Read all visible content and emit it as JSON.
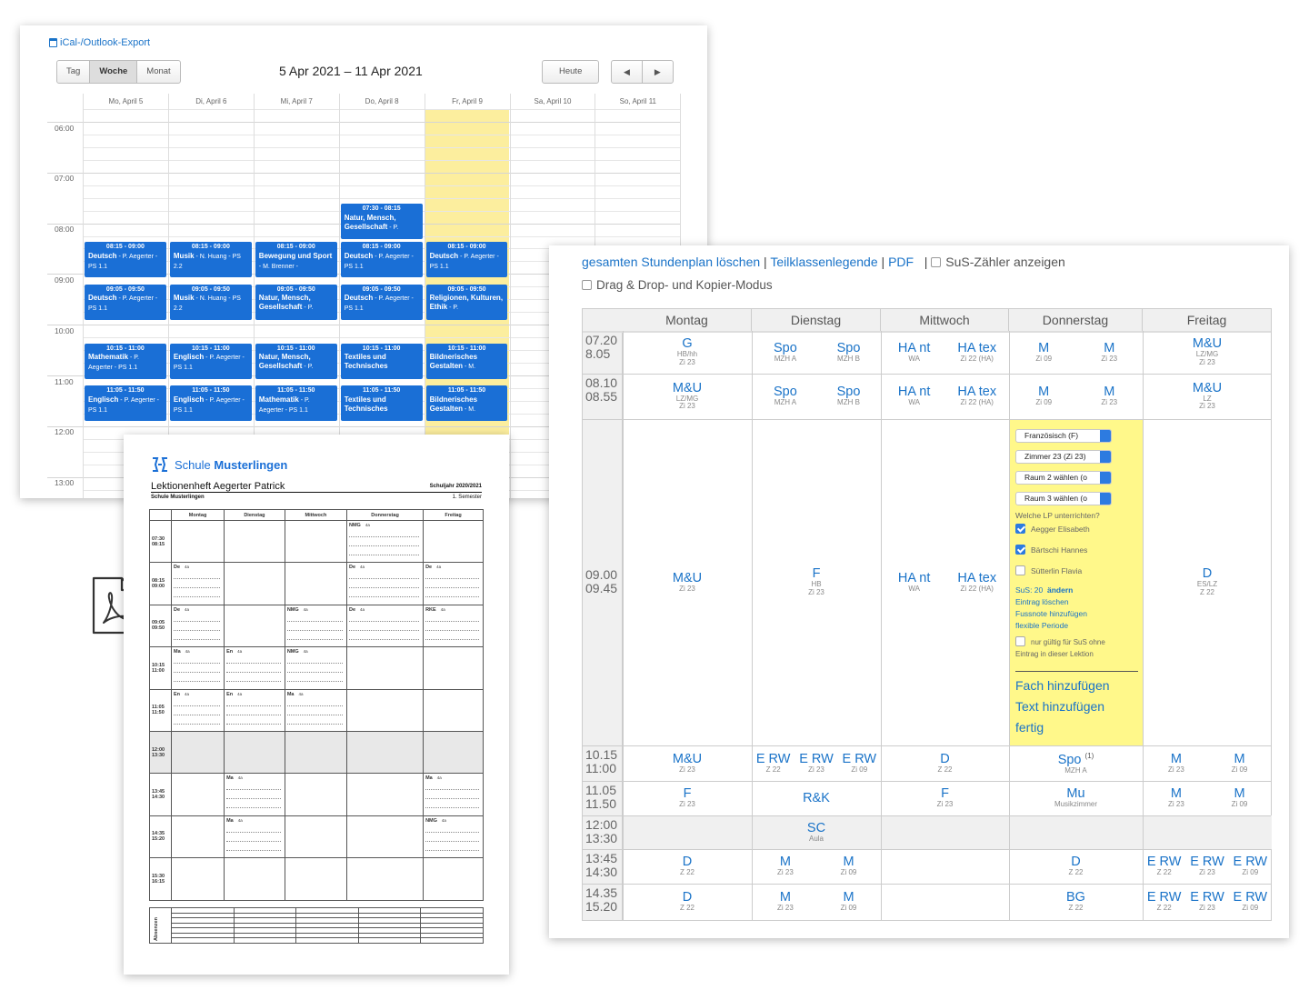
{
  "calendar": {
    "export_link": "iCal-/Outlook-Export",
    "views": [
      "Tag",
      "Woche",
      "Monat"
    ],
    "active_view": "Woche",
    "range_title": "5 Apr 2021 – 11 Apr 2021",
    "today_button": "Heute",
    "prev_icon": "◀",
    "next_icon": "▶",
    "days": [
      "Mo, April 5",
      "Di, April 6",
      "Mi, April 7",
      "Do, April 8",
      "Fr, April 9",
      "Sa, April 10",
      "So, April 11"
    ],
    "times": [
      "06:00",
      "07:00",
      "08:00",
      "09:00",
      "10:00",
      "11:00",
      "12:00",
      "13:00"
    ],
    "events": [
      {
        "day": 3,
        "start": "07:30",
        "time": "07:30 - 08:15",
        "subject": "Natur, Mensch, Gesellschaft",
        "detail": " - P."
      },
      {
        "day": 0,
        "start": "08:15",
        "time": "08:15 - 09:00",
        "subject": "Deutsch",
        "detail": " - P. Aegerter - PS 1.1"
      },
      {
        "day": 1,
        "start": "08:15",
        "time": "08:15 - 09:00",
        "subject": "Musik",
        "detail": " - N. Huang - PS 2.2"
      },
      {
        "day": 2,
        "start": "08:15",
        "time": "08:15 - 09:00",
        "subject": "Bewegung und Sport",
        "detail": " - M. Brenner -"
      },
      {
        "day": 3,
        "start": "08:15",
        "time": "08:15 - 09:00",
        "subject": "Deutsch",
        "detail": " - P. Aegerter - PS 1.1"
      },
      {
        "day": 4,
        "start": "08:15",
        "time": "08:15 - 09:00",
        "subject": "Deutsch",
        "detail": " - P. Aegerter - PS 1.1"
      },
      {
        "day": 0,
        "start": "09:05",
        "time": "09:05 - 09:50",
        "subject": "Deutsch",
        "detail": " - P. Aegerter - PS 1.1"
      },
      {
        "day": 1,
        "start": "09:05",
        "time": "09:05 - 09:50",
        "subject": "Musik",
        "detail": " - N. Huang - PS 2.2"
      },
      {
        "day": 2,
        "start": "09:05",
        "time": "09:05 - 09:50",
        "subject": "Natur, Mensch, Gesellschaft",
        "detail": " - P."
      },
      {
        "day": 3,
        "start": "09:05",
        "time": "09:05 - 09:50",
        "subject": "Deutsch",
        "detail": " - P. Aegerter - PS 1.1"
      },
      {
        "day": 4,
        "start": "09:05",
        "time": "09:05 - 09:50",
        "subject": "Religionen, Kulturen, Ethik",
        "detail": " - P."
      },
      {
        "day": 0,
        "start": "10:15",
        "time": "10:15 - 11:00",
        "subject": "Mathematik",
        "detail": " - P. Aegerter - PS 1.1"
      },
      {
        "day": 1,
        "start": "10:15",
        "time": "10:15 - 11:00",
        "subject": "Englisch",
        "detail": " - P. Aegerter - PS 1.1"
      },
      {
        "day": 2,
        "start": "10:15",
        "time": "10:15 - 11:00",
        "subject": "Natur, Mensch, Gesellschaft",
        "detail": " - P."
      },
      {
        "day": 3,
        "start": "10:15",
        "time": "10:15 - 11:00",
        "subject": "Textiles und Technisches",
        "detail": ""
      },
      {
        "day": 4,
        "start": "10:15",
        "time": "10:15 - 11:00",
        "subject": "Bildnerisches Gestalten",
        "detail": " - M."
      },
      {
        "day": 0,
        "start": "11:05",
        "time": "11:05 - 11:50",
        "subject": "Englisch",
        "detail": " - P. Aegerter - PS 1.1"
      },
      {
        "day": 1,
        "start": "11:05",
        "time": "11:05 - 11:50",
        "subject": "Englisch",
        "detail": " - P. Aegerter - PS 1.1"
      },
      {
        "day": 2,
        "start": "11:05",
        "time": "11:05 - 11:50",
        "subject": "Mathematik",
        "detail": " - P. Aegerter - PS 1.1"
      },
      {
        "day": 3,
        "start": "11:05",
        "time": "11:05 - 11:50",
        "subject": "Textiles und Technisches",
        "detail": ""
      },
      {
        "day": 4,
        "start": "11:05",
        "time": "11:05 - 11:50",
        "subject": "Bildnerisches Gestalten",
        "detail": " - M."
      }
    ]
  },
  "pdf_icon": "pdf-file-icon",
  "pdf": {
    "school_prefix": "Schule",
    "school_name": "Musterlingen",
    "title": "Lektionenheft Aegerter Patrick",
    "year": "Schuljahr 2020/2021",
    "school": "Schule Musterlingen",
    "semester": "1. Semester",
    "days": [
      "Montag",
      "Dienstag",
      "Mittwoch",
      "Donnerstag",
      "Freitag"
    ],
    "absences_label": "Absenzen",
    "rows": [
      {
        "time": [
          "07:30",
          "08:15"
        ],
        "cells": [
          "",
          "",
          "",
          "NMG|4a",
          ""
        ]
      },
      {
        "time": [
          "08:15",
          "09:00"
        ],
        "cells": [
          "De|4a",
          "",
          "",
          "De|4a",
          "De|4a"
        ]
      },
      {
        "time": [
          "09:05",
          "09:50"
        ],
        "cells": [
          "De|4a",
          "",
          "NMG|4a",
          "De|4a",
          "RKE|4a"
        ]
      },
      {
        "time": [
          "10:15",
          "11:00"
        ],
        "cells": [
          "Ma|4a",
          "En|4a",
          "NMG|4a",
          "",
          ""
        ]
      },
      {
        "time": [
          "11:05",
          "11:50"
        ],
        "cells": [
          "En|4a",
          "En|4a",
          "Ma|4a",
          "",
          ""
        ]
      },
      {
        "time": [
          "12:00",
          "13:30"
        ],
        "cells": [
          "",
          "",
          "",
          "",
          ""
        ],
        "gray": true
      },
      {
        "time": [
          "13:45",
          "14:30"
        ],
        "cells": [
          "",
          "Ma|4a",
          "",
          "",
          "Ma|4a"
        ]
      },
      {
        "time": [
          "14:35",
          "15:20"
        ],
        "cells": [
          "",
          "Ma|4a",
          "",
          "",
          "NMG|4a"
        ]
      },
      {
        "time": [
          "15:30",
          "16:15"
        ],
        "cells": [
          "",
          "",
          "",
          "",
          ""
        ]
      }
    ]
  },
  "schedule": {
    "links": {
      "delete": "gesamten Stundenplan löschen",
      "legend": "Teilklassenlegende",
      "pdf": "PDF",
      "counter": "SuS-Zähler anzeigen",
      "drag": "Drag & Drop- und Kopier-Modus"
    },
    "days": [
      "Montag",
      "Dienstag",
      "Mittwoch",
      "Donnerstag",
      "Freitag"
    ],
    "rows": [
      {
        "t1": "07.20",
        "t2": "8.05"
      },
      {
        "t1": "08.10",
        "t2": "08.55"
      },
      {
        "t1": "09.00",
        "t2": "09.45"
      },
      {
        "t1": "10.15",
        "t2": "11:00"
      },
      {
        "t1": "11.05",
        "t2": "11.50"
      },
      {
        "t1": "12:00",
        "t2": "13:30"
      },
      {
        "t1": "13:45",
        "t2": "14:30"
      },
      {
        "t1": "14.35",
        "t2": "15.20"
      }
    ],
    "entries": [
      {
        "r": 0,
        "d": 0,
        "p": 0,
        "n": 1,
        "f": "G",
        "x": [
          "HB/hh",
          "Zi 23"
        ]
      },
      {
        "r": 0,
        "d": 1,
        "p": 0,
        "n": 2,
        "f": "Spo",
        "x": [
          "MZH A"
        ]
      },
      {
        "r": 0,
        "d": 1,
        "p": 1,
        "n": 2,
        "f": "Spo",
        "x": [
          "MZH B"
        ]
      },
      {
        "r": 0,
        "d": 2,
        "p": 0,
        "n": 2,
        "f": "HA nt",
        "x": [
          "WA"
        ]
      },
      {
        "r": 0,
        "d": 2,
        "p": 1,
        "n": 2,
        "f": "HA tex",
        "x": [
          "Zi 22 (HA)"
        ]
      },
      {
        "r": 0,
        "d": 3,
        "p": 0,
        "n": 2,
        "f": "M",
        "x": [
          "Zi 09"
        ]
      },
      {
        "r": 0,
        "d": 3,
        "p": 1,
        "n": 2,
        "f": "M",
        "x": [
          "Zi 23"
        ]
      },
      {
        "r": 0,
        "d": 4,
        "p": 0,
        "n": 1,
        "f": "M&U",
        "x": [
          "LZ/MG",
          "Zi 23"
        ]
      },
      {
        "r": 1,
        "d": 0,
        "p": 0,
        "n": 1,
        "f": "M&U",
        "x": [
          "LZ/MG",
          "Zi 23"
        ]
      },
      {
        "r": 1,
        "d": 1,
        "p": 0,
        "n": 2,
        "f": "Spo",
        "x": [
          "MZH A"
        ]
      },
      {
        "r": 1,
        "d": 1,
        "p": 1,
        "n": 2,
        "f": "Spo",
        "x": [
          "MZH B"
        ]
      },
      {
        "r": 1,
        "d": 2,
        "p": 0,
        "n": 2,
        "f": "HA nt",
        "x": [
          "WA"
        ]
      },
      {
        "r": 1,
        "d": 2,
        "p": 1,
        "n": 2,
        "f": "HA tex",
        "x": [
          "Zi 22 (HA)"
        ]
      },
      {
        "r": 1,
        "d": 3,
        "p": 0,
        "n": 2,
        "f": "M",
        "x": [
          "Zi 09"
        ]
      },
      {
        "r": 1,
        "d": 3,
        "p": 1,
        "n": 2,
        "f": "M",
        "x": [
          "Zi 23"
        ]
      },
      {
        "r": 1,
        "d": 4,
        "p": 0,
        "n": 1,
        "f": "M&U",
        "x": [
          "LZ",
          "Zi 23"
        ]
      },
      {
        "r": 2,
        "d": 0,
        "p": 0,
        "n": 1,
        "f": "M&U",
        "x": [
          "Zi 23"
        ]
      },
      {
        "r": 2,
        "d": 1,
        "p": 0,
        "n": 1,
        "f": "F",
        "x": [
          "HB",
          "Zi 23"
        ]
      },
      {
        "r": 2,
        "d": 2,
        "p": 0,
        "n": 2,
        "f": "HA nt",
        "x": [
          "WA"
        ]
      },
      {
        "r": 2,
        "d": 2,
        "p": 1,
        "n": 2,
        "f": "HA tex",
        "x": [
          "Zi 22 (HA)"
        ]
      },
      {
        "r": 2,
        "d": 4,
        "p": 0,
        "n": 1,
        "f": "D",
        "x": [
          "ES/LZ",
          "Z 22"
        ]
      },
      {
        "r": 3,
        "d": 0,
        "p": 0,
        "n": 1,
        "f": "M&U",
        "x": [
          "Zi 23"
        ]
      },
      {
        "r": 3,
        "d": 1,
        "p": 0,
        "n": 3,
        "f": "E RW",
        "x": [
          "Z 22"
        ]
      },
      {
        "r": 3,
        "d": 1,
        "p": 1,
        "n": 3,
        "f": "E RW",
        "x": [
          "Zi 23"
        ]
      },
      {
        "r": 3,
        "d": 1,
        "p": 2,
        "n": 3,
        "f": "E RW",
        "x": [
          "Zi 09"
        ]
      },
      {
        "r": 3,
        "d": 2,
        "p": 0,
        "n": 1,
        "f": "D",
        "x": [
          "Z 22"
        ]
      },
      {
        "r": 3,
        "d": 3,
        "p": 0,
        "n": 1,
        "f": "Spo",
        "sup": "(1)",
        "x": [
          "MZH A"
        ]
      },
      {
        "r": 3,
        "d": 4,
        "p": 0,
        "n": 2,
        "f": "M",
        "x": [
          "Zi 23"
        ]
      },
      {
        "r": 3,
        "d": 4,
        "p": 1,
        "n": 2,
        "f": "M",
        "x": [
          "Zi 09"
        ]
      },
      {
        "r": 4,
        "d": 0,
        "p": 0,
        "n": 1,
        "f": "F",
        "x": [
          "Zi 23"
        ]
      },
      {
        "r": 4,
        "d": 1,
        "p": 0,
        "n": 1,
        "f": "R&K",
        "x": []
      },
      {
        "r": 4,
        "d": 2,
        "p": 0,
        "n": 1,
        "f": "F",
        "x": [
          "Zi 23"
        ]
      },
      {
        "r": 4,
        "d": 3,
        "p": 0,
        "n": 1,
        "f": "Mu",
        "x": [
          "Musikzimmer"
        ]
      },
      {
        "r": 4,
        "d": 4,
        "p": 0,
        "n": 2,
        "f": "M",
        "x": [
          "Zi 23"
        ]
      },
      {
        "r": 4,
        "d": 4,
        "p": 1,
        "n": 2,
        "f": "M",
        "x": [
          "Zi 09"
        ]
      },
      {
        "r": 5,
        "d": 1,
        "p": 0,
        "n": 1,
        "f": "SC",
        "x": [
          "Aula"
        ]
      },
      {
        "r": 6,
        "d": 0,
        "p": 0,
        "n": 1,
        "f": "D",
        "x": [
          "Z 22"
        ]
      },
      {
        "r": 6,
        "d": 1,
        "p": 0,
        "n": 2,
        "f": "M",
        "x": [
          "Zi 23"
        ]
      },
      {
        "r": 6,
        "d": 1,
        "p": 1,
        "n": 2,
        "f": "M",
        "x": [
          "Zi 09"
        ]
      },
      {
        "r": 6,
        "d": 3,
        "p": 0,
        "n": 1,
        "f": "D",
        "x": [
          "Z 22"
        ]
      },
      {
        "r": 6,
        "d": 4,
        "p": 0,
        "n": 3,
        "f": "E RW",
        "x": [
          "Z 22"
        ]
      },
      {
        "r": 6,
        "d": 4,
        "p": 1,
        "n": 3,
        "f": "E RW",
        "x": [
          "Zi 23"
        ]
      },
      {
        "r": 6,
        "d": 4,
        "p": 2,
        "n": 3,
        "f": "E RW",
        "x": [
          "Zi 09"
        ]
      },
      {
        "r": 7,
        "d": 0,
        "p": 0,
        "n": 1,
        "f": "D",
        "x": [
          "Z 22"
        ]
      },
      {
        "r": 7,
        "d": 1,
        "p": 0,
        "n": 2,
        "f": "M",
        "x": [
          "Zi 23"
        ]
      },
      {
        "r": 7,
        "d": 1,
        "p": 1,
        "n": 2,
        "f": "M",
        "x": [
          "Zi 09"
        ]
      },
      {
        "r": 7,
        "d": 3,
        "p": 0,
        "n": 1,
        "f": "BG",
        "x": [
          "Z 22"
        ]
      },
      {
        "r": 7,
        "d": 4,
        "p": 0,
        "n": 3,
        "f": "E RW",
        "x": [
          "Z 22"
        ]
      },
      {
        "r": 7,
        "d": 4,
        "p": 1,
        "n": 3,
        "f": "E RW",
        "x": [
          "Zi 23"
        ]
      },
      {
        "r": 7,
        "d": 4,
        "p": 2,
        "n": 3,
        "f": "E RW",
        "x": [
          "Zi 09"
        ]
      }
    ],
    "editor": {
      "selects": [
        "Französisch (F)",
        "Zimmer 23 (Zi 23)",
        "Raum 2 wählen (o",
        "Raum 3 wählen (o"
      ],
      "question": "Welche LP unterrichten?",
      "teachers": [
        {
          "name": "Aegger Elisabeth",
          "checked": true
        },
        {
          "name": "Bärtschi Hannes",
          "checked": true
        },
        {
          "name": "Sütterlin Flavia",
          "checked": false
        }
      ],
      "sus_label": "SuS: 20",
      "sus_change": "ändern",
      "delete_entry": "Eintrag löschen",
      "add_footnote": "Fussnote hinzufügen",
      "flex_period": "flexible Periode",
      "only_valid_1": "nur gültig für SuS ohne",
      "only_valid_2": "Eintrag in dieser Lektion",
      "add_subject": "Fach hinzufügen",
      "add_text": "Text hinzufügen",
      "done": "fertig"
    }
  }
}
